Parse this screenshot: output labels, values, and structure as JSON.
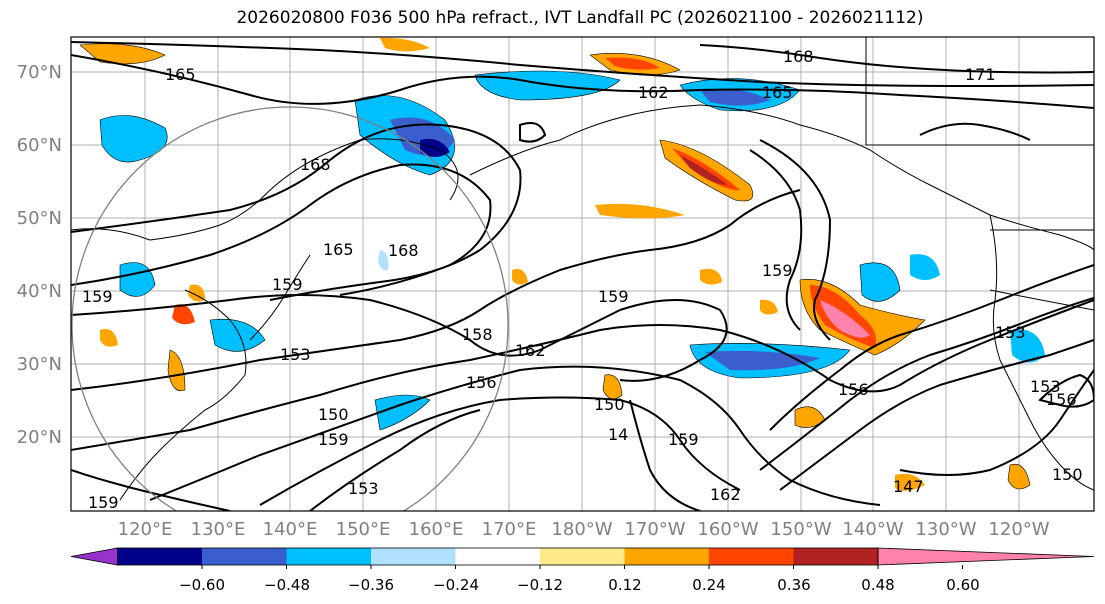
{
  "title": "2026020800 F036 500 hPa refract., IVT Landfall PC (2026021100 - 2026021112)",
  "latitude_labels": [
    "70°N",
    "60°N",
    "50°N",
    "40°N",
    "30°N",
    "20°N"
  ],
  "longitude_labels": [
    "120°E",
    "130°E",
    "140°E",
    "150°E",
    "160°E",
    "170°E",
    "180°W",
    "170°W",
    "160°W",
    "150°W",
    "140°W",
    "130°W",
    "120°W"
  ],
  "contour_labels": [
    "165",
    "168",
    "162",
    "165",
    "171",
    "168",
    "165",
    "168",
    "159",
    "159",
    "159",
    "159",
    "153",
    "150",
    "158",
    "162",
    "156",
    "150",
    "14",
    "159",
    "162",
    "156",
    "153",
    "147",
    "153",
    "156",
    "150",
    "159",
    "159",
    "153"
  ],
  "colorbar": {
    "ticks": [
      "−0.60",
      "−0.48",
      "−0.36",
      "−0.24",
      "−0.12",
      "0.12",
      "0.24",
      "0.36",
      "0.48",
      "0.60"
    ],
    "colors": [
      "#9932cc",
      "#00008b",
      "#3a5fcd",
      "#00bfff",
      "#b0e2ff",
      "#ffffff",
      "#ffea8a",
      "#ffa500",
      "#ff4500",
      "#b22222",
      "#ff82ab"
    ],
    "extend": "both"
  }
}
